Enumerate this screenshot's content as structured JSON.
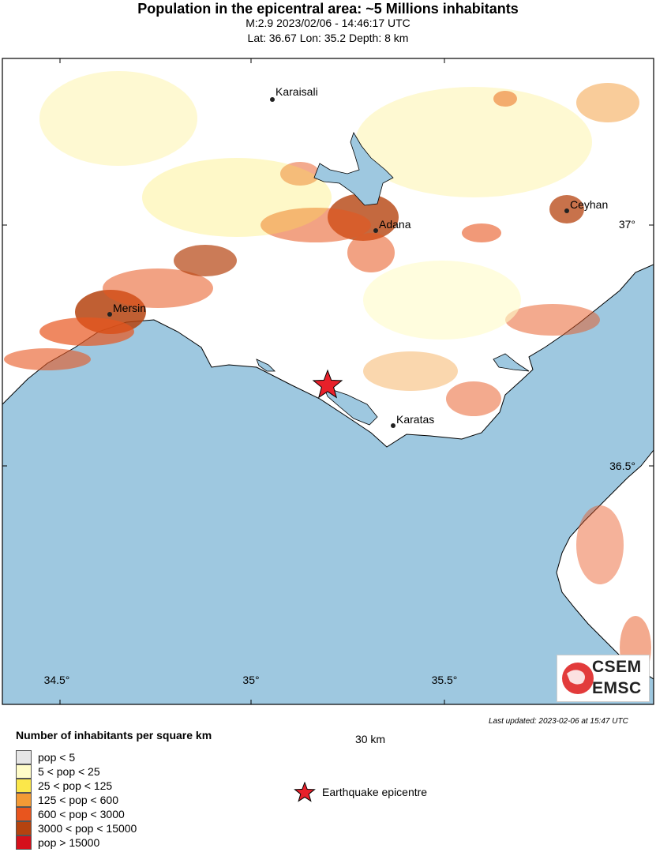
{
  "header": {
    "title": "Population in the epicentral area: ~5 Millions inhabitants",
    "subtitle1": "M:2.9 2023/02/06 - 14:46:17 UTC",
    "subtitle2": "Lat: 36.67 Lon: 35.2 Depth: 8 km"
  },
  "map": {
    "colors": {
      "sea": "#9ec8e0",
      "land": "#ffffff",
      "frame": "#000000",
      "epicentre": "#e8202a"
    },
    "cities": [
      {
        "name": "Karaisali"
      },
      {
        "name": "Adana"
      },
      {
        "name": "Ceyhan"
      },
      {
        "name": "Mersin"
      },
      {
        "name": "Karatas"
      }
    ],
    "lon_ticks": [
      "34.5°",
      "35°",
      "35.5°"
    ],
    "lat_ticks": [
      "37°",
      "36.5°"
    ]
  },
  "scale": {
    "label": "30 km"
  },
  "updated": "Last updated: 2023-02-06 at 15:47 UTC",
  "legend": {
    "title": "Number of inhabitants per square km",
    "items": [
      {
        "label": "pop < 5",
        "color": "#e6e6e6"
      },
      {
        "label": "5 < pop < 25",
        "color": "#fffcc8"
      },
      {
        "label": "25 < pop < 125",
        "color": "#fbe74a"
      },
      {
        "label": "125 < pop < 600",
        "color": "#f39a35"
      },
      {
        "label": "600 < pop < 3000",
        "color": "#e8551e"
      },
      {
        "label": "3000 < pop < 15000",
        "color": "#b5430f"
      },
      {
        "label": "pop > 15000",
        "color": "#d5101b"
      }
    ],
    "epicentre_label": "Earthquake epicentre"
  },
  "logo": {
    "line1": "CSEM",
    "line2": "EMSC"
  }
}
